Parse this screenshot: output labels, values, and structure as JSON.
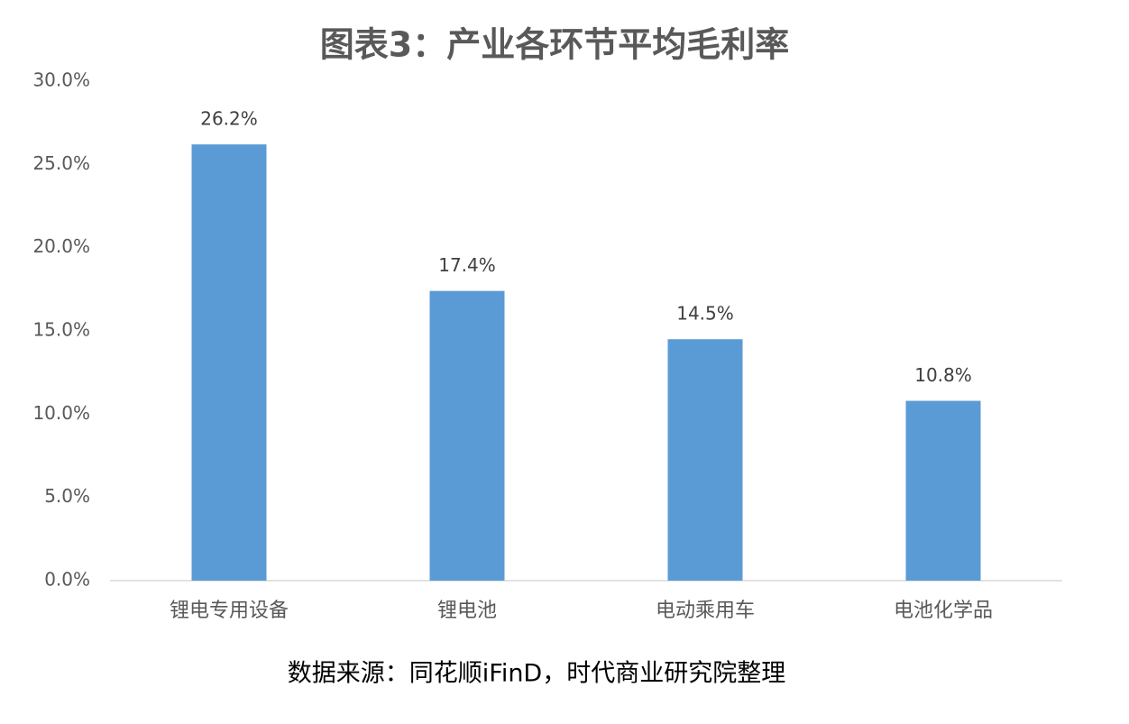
{
  "chart_data": {
    "type": "bar",
    "title": "图表3：产业各环节平均毛利率",
    "categories": [
      "锂电专用设备",
      "锂电池",
      "电动乘用车",
      "电池化学品"
    ],
    "values": [
      26.2,
      17.4,
      14.5,
      10.8
    ],
    "value_labels": [
      "26.2%",
      "17.4%",
      "14.5%",
      "10.8%"
    ],
    "color": "#5b9bd5",
    "ylim": [
      0,
      30
    ],
    "yticks": [
      {
        "value": 0,
        "label": "0.0%"
      },
      {
        "value": 5,
        "label": "5.0%"
      },
      {
        "value": 10,
        "label": "10.0%"
      },
      {
        "value": 15,
        "label": "15.0%"
      },
      {
        "value": 20,
        "label": "20.0%"
      },
      {
        "value": 25,
        "label": "25.0%"
      },
      {
        "value": 30,
        "label": "30.0%"
      }
    ],
    "grid": false,
    "source": "数据来源：同花顺iFinD，时代商业研究院整理"
  }
}
